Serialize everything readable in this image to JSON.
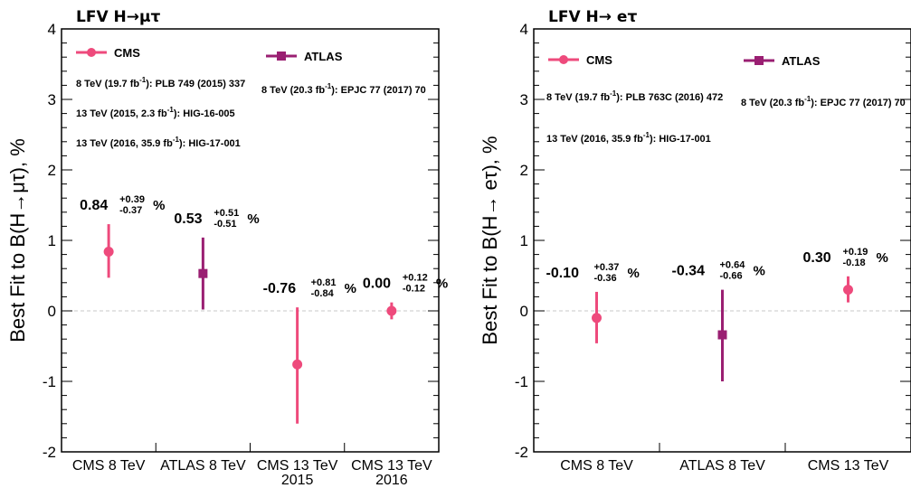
{
  "colors": {
    "cms": "#ee4a7c",
    "atlas": "#9a1f72",
    "zero_line": "#c8c8c8"
  },
  "chart_data": [
    {
      "type": "scatter",
      "title": "LFV H→μτ",
      "ylabel": "Best Fit to B(H→μτ), %",
      "ylim": [
        -2,
        4
      ],
      "yticks": [
        "-2",
        "-1",
        "0",
        "1",
        "2",
        "3",
        "4"
      ],
      "categories": [
        {
          "lines": [
            "CMS 8 TeV"
          ]
        },
        {
          "lines": [
            "ATLAS 8 TeV"
          ]
        },
        {
          "lines": [
            "CMS 13 TeV",
            "2015"
          ]
        },
        {
          "lines": [
            "CMS 13 TeV",
            "2016"
          ]
        }
      ],
      "points": [
        {
          "experiment": "cms",
          "marker": "circle",
          "value": 0.84,
          "err_up": 0.39,
          "err_down": 0.37,
          "label": {
            "main": "0.84",
            "up": "+0.39",
            "down": "-0.37",
            "pct": "%"
          }
        },
        {
          "experiment": "atlas",
          "marker": "square",
          "value": 0.53,
          "err_up": 0.51,
          "err_down": 0.51,
          "label": {
            "main": "0.53",
            "up": "+0.51",
            "down": "-0.51",
            "pct": "%"
          }
        },
        {
          "experiment": "cms",
          "marker": "circle",
          "value": -0.76,
          "err_up": 0.81,
          "err_down": 0.84,
          "label": {
            "main": "-0.76",
            "up": "+0.81",
            "down": "-0.84",
            "pct": "%"
          }
        },
        {
          "experiment": "cms",
          "marker": "circle",
          "value": 0.0,
          "err_up": 0.12,
          "err_down": 0.12,
          "label": {
            "main": "0.00",
            "up": "+0.12",
            "down": "-0.12",
            "pct": "%"
          }
        }
      ],
      "legend": {
        "cms": {
          "label": "CMS"
        },
        "atlas": {
          "label": "ATLAS"
        }
      },
      "references": {
        "cms": [
          {
            "pre": "8 TeV (19.7 fb",
            "sup": "-1",
            "post": "): PLB 749 (2015) 337"
          },
          {
            "pre": "13 TeV (2015, 2.3 fb",
            "sup": "-1",
            "post": "): HIG-16-005"
          },
          {
            "pre": "13 TeV (2016, 35.9 fb",
            "sup": "-1",
            "post": "): HIG-17-001"
          }
        ],
        "atlas": [
          {
            "pre": "8 TeV (20.3 fb",
            "sup": "-1",
            "post": "): EPJC 77 (2017) 70"
          }
        ]
      }
    },
    {
      "type": "scatter",
      "title": "LFV H→ eτ",
      "ylabel": "Best Fit to B(H→ eτ), %",
      "ylim": [
        -2,
        4
      ],
      "yticks": [
        "-2",
        "-1",
        "0",
        "1",
        "2",
        "3",
        "4"
      ],
      "categories": [
        {
          "lines": [
            "CMS 8 TeV"
          ]
        },
        {
          "lines": [
            "ATLAS 8 TeV"
          ]
        },
        {
          "lines": [
            "CMS 13 TeV"
          ]
        }
      ],
      "points": [
        {
          "experiment": "cms",
          "marker": "circle",
          "value": -0.1,
          "err_up": 0.37,
          "err_down": 0.36,
          "label": {
            "main": "-0.10",
            "up": "+0.37",
            "down": "-0.36",
            "pct": "%"
          }
        },
        {
          "experiment": "atlas",
          "marker": "square",
          "value": -0.34,
          "err_up": 0.64,
          "err_down": 0.66,
          "label": {
            "main": "-0.34",
            "up": "+0.64",
            "down": "-0.66",
            "pct": "%"
          }
        },
        {
          "experiment": "cms",
          "marker": "circle",
          "value": 0.3,
          "err_up": 0.19,
          "err_down": 0.18,
          "label": {
            "main": "0.30",
            "up": "+0.19",
            "down": "-0.18",
            "pct": "%"
          }
        }
      ],
      "legend": {
        "cms": {
          "label": "CMS"
        },
        "atlas": {
          "label": "ATLAS"
        }
      },
      "references": {
        "cms": [
          {
            "pre": "8 TeV (19.7 fb",
            "sup": "-1",
            "post": "): PLB 763C (2016) 472"
          },
          {
            "pre": "13 TeV (2016, 35.9 fb",
            "sup": "-1",
            "post": "): HIG-17-001"
          }
        ],
        "atlas": [
          {
            "pre": "8 TeV (20.3 fb",
            "sup": "-1",
            "post": "): EPJC 77 (2017) 70"
          }
        ]
      }
    }
  ]
}
